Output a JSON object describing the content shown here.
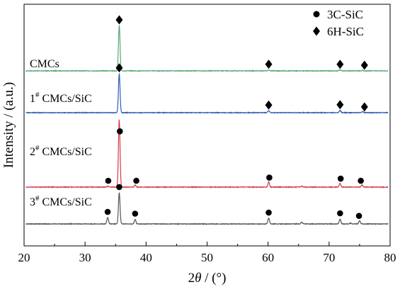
{
  "chart_data": {
    "type": "line",
    "xlabel": "2θ / (°)",
    "xlabel_parts": {
      "prefix": "2",
      "symbol": "θ",
      "suffix": " / (°)"
    },
    "ylabel": "Intensity / (a.u.)",
    "xlim": [
      20,
      80
    ],
    "x_ticks": [
      20,
      30,
      40,
      50,
      60,
      70,
      80
    ],
    "y_ticks_labeled": false,
    "grid": false,
    "legend_position": "top-right",
    "legend": [
      {
        "marker": "circle",
        "label": "3C-SiC"
      },
      {
        "marker": "diamond",
        "label": "6H-SiC"
      }
    ],
    "series": [
      {
        "label_parts": {
          "base": "CMCs",
          "sup": "",
          "rest": ""
        },
        "color": "#5aa57a",
        "baseline": 0,
        "peaks": [
          [
            35.6,
            10.0
          ],
          [
            60.1,
            0.22
          ],
          [
            71.8,
            0.2
          ],
          [
            75.5,
            0.13
          ]
        ],
        "markers": [
          {
            "x": 35.6,
            "symbol": "diamond"
          },
          {
            "x": 60.1,
            "symbol": "diamond"
          },
          {
            "x": 71.8,
            "symbol": "diamond"
          },
          {
            "x": 75.8,
            "symbol": "diamond"
          }
        ]
      },
      {
        "label_parts": {
          "base": "1",
          "sup": "#",
          "rest": " CMCs/SiC"
        },
        "color": "#2f5cb4",
        "baseline": 0,
        "peaks": [
          [
            35.6,
            6.0
          ],
          [
            60.1,
            0.3
          ],
          [
            71.8,
            0.35
          ],
          [
            75.5,
            0.2
          ]
        ],
        "markers": [
          {
            "x": 35.6,
            "symbol": "diamond"
          },
          {
            "x": 60.1,
            "symbol": "diamond"
          },
          {
            "x": 71.8,
            "symbol": "diamond"
          },
          {
            "x": 75.8,
            "symbol": "diamond"
          }
        ]
      },
      {
        "label_parts": {
          "base": "2",
          "sup": "#",
          "rest": " CMCs/SiC"
        },
        "color": "#d23a4a",
        "baseline": 0,
        "peaks": [
          [
            33.7,
            0.12
          ],
          [
            35.6,
            9.8
          ],
          [
            38.2,
            0.3
          ],
          [
            60.1,
            0.75
          ],
          [
            65.5,
            0.12
          ],
          [
            71.8,
            0.55
          ],
          [
            75.4,
            0.3
          ]
        ],
        "markers": [
          {
            "x": 33.8,
            "symbol": "circle"
          },
          {
            "x": 35.7,
            "symbol": "circle"
          },
          {
            "x": 38.4,
            "symbol": "circle"
          },
          {
            "x": 60.2,
            "symbol": "circle"
          },
          {
            "x": 71.9,
            "symbol": "circle"
          },
          {
            "x": 75.2,
            "symbol": "circle"
          }
        ]
      },
      {
        "label_parts": {
          "base": "3",
          "sup": "#",
          "rest": " CMCs/SiC"
        },
        "color": "#555555",
        "baseline": 0,
        "peaks": [
          [
            33.7,
            0.9
          ],
          [
            35.6,
            4.4
          ],
          [
            38.2,
            0.65
          ],
          [
            60.1,
            0.8
          ],
          [
            65.5,
            0.25
          ],
          [
            71.8,
            0.7
          ],
          [
            73.5,
            0.12
          ],
          [
            75.0,
            0.45
          ]
        ],
        "markers": [
          {
            "x": 33.7,
            "symbol": "circle"
          },
          {
            "x": 35.6,
            "symbol": "circle"
          },
          {
            "x": 38.2,
            "symbol": "circle"
          },
          {
            "x": 60.1,
            "symbol": "circle"
          },
          {
            "x": 71.8,
            "symbol": "circle"
          },
          {
            "x": 74.9,
            "symbol": "circle"
          }
        ]
      }
    ]
  }
}
